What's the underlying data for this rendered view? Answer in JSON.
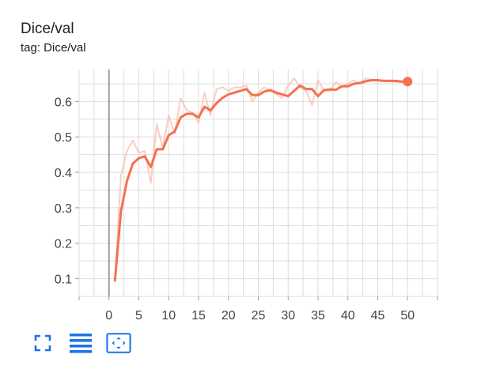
{
  "card": {
    "title": "Dice/val",
    "tag": "tag: Dice/val"
  },
  "toolbar": {
    "buttons": [
      {
        "icon": "fullscreen-icon"
      },
      {
        "icon": "toggle-log-scale-icon"
      },
      {
        "icon": "fit-domain-icon",
        "active": true
      }
    ]
  },
  "colors": {
    "smoothed": "#f4714f",
    "raw": "#f8b9a6",
    "grid": "#dddddd",
    "axis": "#9e9e9e",
    "tick_label": "#444444",
    "icon": "#1a73e8"
  },
  "chart_data": {
    "type": "line",
    "title": "Dice/val",
    "xlabel": "",
    "ylabel": "",
    "xlim": [
      -5,
      55
    ],
    "ylim": [
      0.05,
      0.69
    ],
    "x_ticks": [
      0,
      5,
      10,
      15,
      20,
      25,
      30,
      35,
      40,
      45,
      50
    ],
    "y_ticks": [
      0.1,
      0.2,
      0.3,
      0.4,
      0.5,
      0.6
    ],
    "grid": true,
    "series": [
      {
        "role": "raw",
        "x": [
          1,
          2,
          3,
          4,
          5,
          6,
          7,
          8,
          9,
          10,
          11,
          12,
          13,
          14,
          15,
          16,
          17,
          18,
          19,
          20,
          21,
          22,
          23,
          24,
          25,
          26,
          27,
          28,
          29,
          30,
          31,
          32,
          33,
          34,
          35,
          36,
          37,
          38,
          39,
          40,
          41,
          42,
          43,
          44,
          45,
          46,
          47,
          48,
          49,
          50
        ],
        "values": [
          0.1,
          0.39,
          0.46,
          0.49,
          0.455,
          0.46,
          0.37,
          0.535,
          0.47,
          0.56,
          0.51,
          0.61,
          0.575,
          0.57,
          0.54,
          0.625,
          0.56,
          0.635,
          0.64,
          0.63,
          0.64,
          0.64,
          0.645,
          0.6,
          0.625,
          0.64,
          0.63,
          0.62,
          0.61,
          0.645,
          0.665,
          0.64,
          0.63,
          0.59,
          0.66,
          0.63,
          0.63,
          0.655,
          0.64,
          0.65,
          0.66,
          0.65,
          0.665,
          0.66,
          0.66,
          0.66,
          0.66,
          0.655,
          0.655,
          0.655
        ]
      },
      {
        "role": "smoothed",
        "x": [
          1,
          2,
          3,
          4,
          5,
          6,
          7,
          8,
          9,
          10,
          11,
          12,
          13,
          14,
          15,
          16,
          17,
          18,
          19,
          20,
          21,
          22,
          23,
          24,
          25,
          26,
          27,
          28,
          29,
          30,
          31,
          32,
          33,
          34,
          35,
          36,
          37,
          38,
          39,
          40,
          41,
          42,
          43,
          44,
          45,
          46,
          47,
          48,
          49,
          50
        ],
        "values": [
          0.095,
          0.29,
          0.375,
          0.425,
          0.44,
          0.445,
          0.415,
          0.465,
          0.465,
          0.505,
          0.515,
          0.555,
          0.565,
          0.565,
          0.555,
          0.585,
          0.575,
          0.595,
          0.61,
          0.62,
          0.625,
          0.63,
          0.635,
          0.618,
          0.618,
          0.628,
          0.632,
          0.625,
          0.62,
          0.615,
          0.63,
          0.645,
          0.635,
          0.635,
          0.615,
          0.632,
          0.634,
          0.633,
          0.643,
          0.643,
          0.65,
          0.652,
          0.657,
          0.66,
          0.66,
          0.658,
          0.658,
          0.658,
          0.656,
          0.656
        ]
      }
    ]
  }
}
